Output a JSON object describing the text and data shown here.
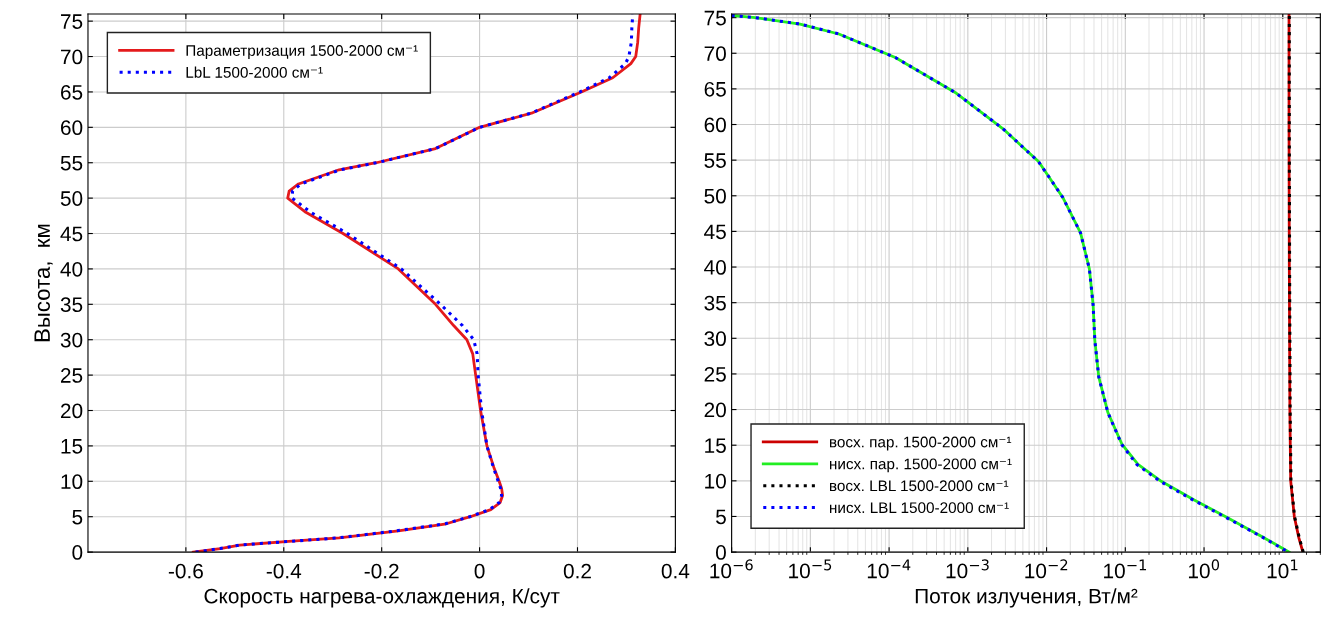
{
  "chart_data": [
    {
      "type": "line",
      "xlabel": "Скорость нагрева-охлаждения, К/сут",
      "ylabel": "Высота,  км",
      "xlim": [
        -0.8,
        0.4
      ],
      "ylim": [
        0,
        76
      ],
      "xticks": [
        -0.6,
        -0.4,
        -0.2,
        0,
        0.2,
        0.4
      ],
      "yticks": [
        0,
        5,
        10,
        15,
        20,
        25,
        30,
        35,
        40,
        45,
        50,
        55,
        60,
        65,
        70,
        75
      ],
      "grid": true,
      "legend": "top left",
      "series": [
        {
          "name": "Параметризация 1500-2000 см⁻¹",
          "color": "#e41a1c",
          "line_style": "solid",
          "x": [
            -0.585,
            -0.53,
            -0.49,
            -0.39,
            -0.287,
            -0.166,
            -0.068,
            -0.019,
            0.023,
            0.042,
            0.047,
            0.045,
            0.04,
            0.029,
            0.015,
            0.002,
            -0.008,
            -0.014,
            -0.026,
            -0.053,
            -0.09,
            -0.166,
            -0.279,
            -0.355,
            -0.392,
            -0.389,
            -0.37,
            -0.287,
            -0.211,
            -0.09,
            0,
            0.106,
            0.208,
            0.272,
            0.309,
            0.319,
            0.323,
            0.325,
            0.328
          ],
          "values": [
            0,
            0.5,
            1,
            1.5,
            2,
            3,
            4,
            5,
            6,
            7,
            8,
            9,
            10,
            12,
            15,
            20,
            25,
            28,
            30,
            32,
            35,
            40,
            45,
            48,
            50,
            51,
            52,
            54,
            55,
            57,
            60,
            62,
            65,
            67,
            69,
            70,
            72,
            74,
            76
          ]
        },
        {
          "name": "LbL 1500-2000 см⁻¹",
          "color": "#0000ff",
          "line_style": "dotted",
          "x": [
            -0.58,
            -0.53,
            -0.49,
            -0.39,
            -0.29,
            -0.17,
            -0.07,
            -0.02,
            0.02,
            0.04,
            0.045,
            0.043,
            0.038,
            0.028,
            0.015,
            0.004,
            -0.003,
            -0.005,
            -0.012,
            -0.035,
            -0.08,
            -0.16,
            -0.27,
            -0.345,
            -0.383,
            -0.382,
            -0.365,
            -0.285,
            -0.21,
            -0.09,
            0,
            0.105,
            0.205,
            0.265,
            0.298,
            0.305,
            0.31,
            0.311,
            0.313
          ],
          "values": [
            0,
            0.5,
            1,
            1.5,
            2,
            3,
            4,
            5,
            6,
            7,
            8,
            9,
            10,
            12,
            15,
            20,
            25,
            28,
            30,
            32,
            35,
            40,
            45,
            48,
            50,
            51,
            52,
            54,
            55,
            57,
            60,
            62,
            65,
            67,
            69,
            70,
            72,
            74,
            76
          ]
        }
      ]
    },
    {
      "type": "line",
      "xlabel": "Поток излучения, Вт/м²",
      "log": "x",
      "xlim": [
        1e-06,
        30
      ],
      "ylim": [
        0,
        75.5
      ],
      "xticks": [
        {
          "value": 1e-06,
          "label": "10$^{−6}$"
        },
        {
          "value": 1e-05,
          "label": "10$^{−5}$"
        },
        {
          "value": 0.0001,
          "label": "10$^{−4}$"
        },
        {
          "value": 0.001,
          "label": "10$^{−3}$"
        },
        {
          "value": 0.01,
          "label": "10$^{−2}$"
        },
        {
          "value": 0.1,
          "label": "10$^{−1}$"
        },
        {
          "value": 1,
          "label": "10$^{0}$"
        },
        {
          "value": 10,
          "label": "10$^{1}$"
        }
      ],
      "yticks": [
        0,
        5,
        10,
        15,
        20,
        25,
        30,
        35,
        40,
        45,
        50,
        55,
        60,
        65,
        70,
        75
      ],
      "grid": true,
      "legend": "bottom left",
      "series": [
        {
          "name": "восх. пар. 1500-2000 см⁻¹",
          "color": "#cc0000",
          "line_style": "solid",
          "x": [
            18,
            16,
            14,
            12.6,
            12.3,
            12.1,
            12,
            12
          ],
          "values": [
            0,
            2,
            5,
            10,
            20,
            40,
            60,
            75.5
          ]
        },
        {
          "name": "нисх. пар. 1500-2000 см⁻¹",
          "color": "#22ee22",
          "line_style": "solid",
          "x": [
            1e-06,
            2e-06,
            7.4e-06,
            2.3e-05,
            0.00012,
            0.00069,
            0.0028,
            0.0079,
            0.016,
            0.027,
            0.035,
            0.039,
            0.041,
            0.046,
            0.06,
            0.091,
            0.145,
            0.29,
            0.75,
            1.86,
            5.4,
            12
          ],
          "values": [
            75.3,
            75,
            74.1,
            72.7,
            69.4,
            64.5,
            59.4,
            54.8,
            49.8,
            44.8,
            39.7,
            34.7,
            29.7,
            24.6,
            19.6,
            15.1,
            12.3,
            9.9,
            7.3,
            5,
            2.2,
            0
          ]
        },
        {
          "name": "восх. LBL 1500-2000 см⁻¹",
          "color": "#000000",
          "line_style": "dotted",
          "x": [
            18.2,
            16.2,
            14.1,
            12.7,
            12.4,
            12.2,
            12.1,
            12.1
          ],
          "values": [
            0,
            2,
            5,
            10,
            20,
            40,
            60,
            75.5
          ]
        },
        {
          "name": "нисх. LBL 1500-2000 см⁻¹",
          "color": "#0000ff",
          "line_style": "dotted",
          "x": [
            1e-06,
            2e-06,
            7.4e-06,
            2.3e-05,
            0.00012,
            0.00069,
            0.0028,
            0.0079,
            0.016,
            0.027,
            0.035,
            0.039,
            0.041,
            0.046,
            0.06,
            0.09,
            0.14,
            0.28,
            0.73,
            1.8,
            5.3,
            11.8
          ],
          "values": [
            75.3,
            75,
            74.1,
            72.7,
            69.4,
            64.5,
            59.4,
            54.8,
            49.8,
            44.8,
            39.7,
            34.7,
            29.7,
            24.6,
            19.6,
            15.1,
            12.3,
            9.9,
            7.3,
            5,
            2.2,
            0
          ]
        }
      ]
    }
  ]
}
